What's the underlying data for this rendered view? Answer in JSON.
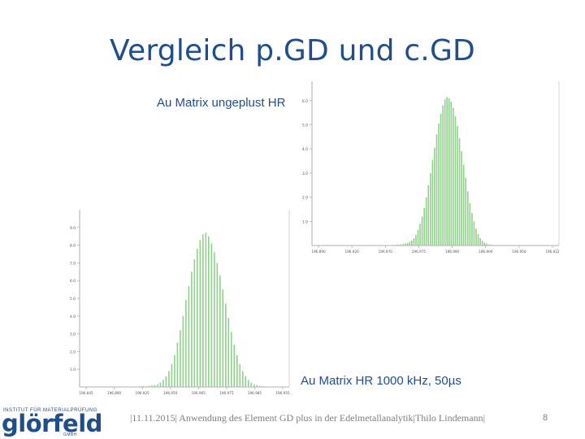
{
  "slide": {
    "title": "Vergleich p.GD und c.GD",
    "label_top": "Au Matrix ungeplust HR",
    "label_bottom": "Au Matrix HR 1000 kHz, 50µs",
    "footer": "|11.11.2015| Anwendung des Element GD plus in der Edelmetallanalytik|Thilo Lindemann|",
    "page_number": "8",
    "accent_color": "#1f4e8c"
  },
  "logo": {
    "line1": "INSTITUT FÜR MATERIALPRÜFUNG",
    "name": "glörfeld",
    "line2": "GMBH"
  },
  "chart_data": [
    {
      "type": "bar",
      "id": "top",
      "ylim": [
        0,
        6.8
      ],
      "y_ticks": [
        1.0,
        2.0,
        3.0,
        4.0,
        5.0,
        6.0
      ],
      "y_tick_labels": [
        "1.0",
        "2.0",
        "3.0",
        "4.0",
        "5.0",
        "6.0"
      ],
      "x_tick_labels": [
        "196.890",
        "196.920",
        "196.970",
        "196.975",
        "196.990",
        "196.900",
        "196.950",
        "196.922"
      ],
      "bar_color": "#8fd18a",
      "values": [
        0.02,
        0.03,
        0.02,
        0.04,
        0.03,
        0.05,
        0.06,
        0.08,
        0.1,
        0.15,
        0.2,
        0.3,
        0.45,
        0.65,
        0.9,
        1.2,
        1.55,
        2.0,
        2.5,
        3.0,
        3.55,
        4.05,
        4.6,
        5.05,
        5.45,
        5.8,
        6.05,
        6.15,
        6.1,
        5.95,
        5.7,
        5.35,
        4.95,
        4.45,
        3.9,
        3.35,
        2.8,
        2.25,
        1.75,
        1.35,
        1.0,
        0.7,
        0.48,
        0.3,
        0.2,
        0.12,
        0.08,
        0.05,
        0.04,
        0.03,
        0.02
      ]
    },
    {
      "type": "bar",
      "id": "bottom",
      "ylim": [
        0,
        10
      ],
      "y_ticks": [
        1.0,
        2.0,
        3.0,
        4.0,
        5.0,
        6.0,
        7.0,
        8.0,
        9.0
      ],
      "y_tick_labels": [
        "1.0",
        "2.0",
        "3.0",
        "4.0",
        "5.0",
        "6.0",
        "7.0",
        "8.0",
        "9.0"
      ],
      "x_tick_labels": [
        "196.845",
        "196.890",
        "196.925",
        "196.950",
        "196.965",
        "196.975",
        "196.985",
        "196.955"
      ],
      "bar_color": "#8fd18a",
      "values": [
        0.02,
        0.03,
        0.02,
        0.04,
        0.05,
        0.04,
        0.06,
        0.08,
        0.1,
        0.15,
        0.25,
        0.4,
        0.6,
        0.9,
        1.3,
        1.8,
        2.5,
        3.2,
        4.0,
        4.9,
        5.7,
        6.5,
        7.2,
        7.8,
        8.3,
        8.6,
        8.7,
        8.5,
        8.1,
        7.6,
        7.0,
        6.3,
        5.5,
        4.7,
        3.9,
        3.1,
        2.4,
        1.8,
        1.3,
        0.9,
        0.6,
        0.4,
        0.25,
        0.15,
        0.1,
        0.06,
        0.04,
        0.03,
        0.02
      ]
    }
  ]
}
